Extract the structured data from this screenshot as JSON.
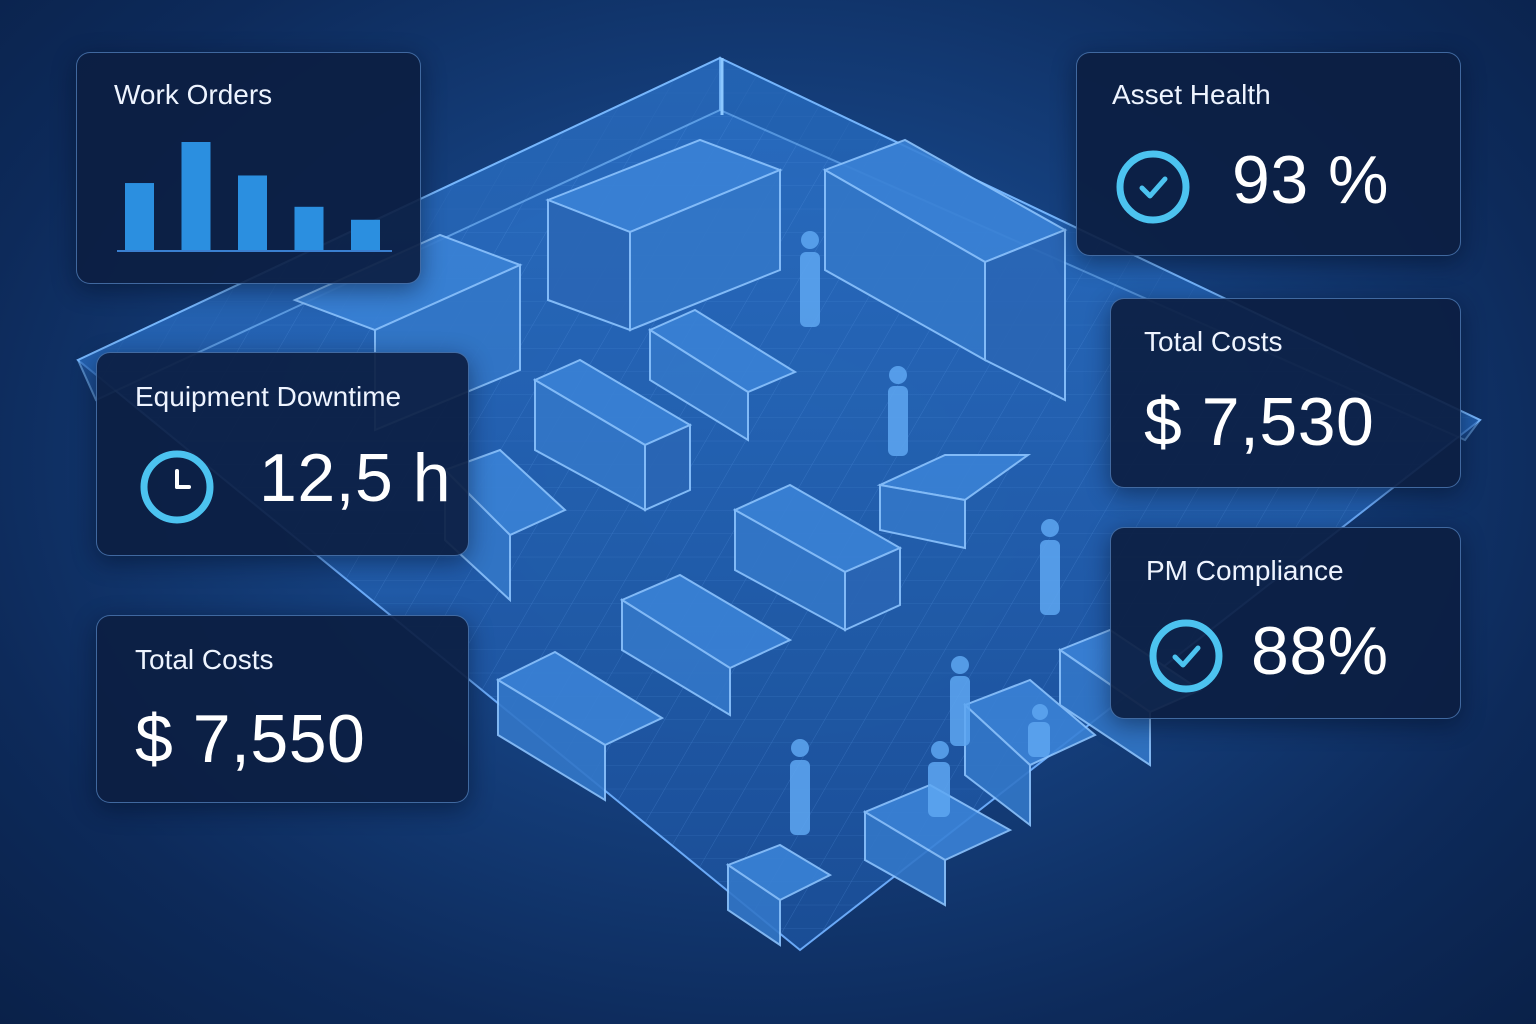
{
  "cards": {
    "work_orders": {
      "title": "Work Orders",
      "chart_data": {
        "type": "bar",
        "values": [
          0.62,
          1.0,
          0.69,
          0.4,
          0.28
        ]
      }
    },
    "downtime": {
      "title": "Equipment Downtime",
      "value": "12,5 h",
      "icon": "clock-icon"
    },
    "costs_left": {
      "title": "Total Costs",
      "value": "$ 7,550"
    },
    "asset_health": {
      "title": "Asset Health",
      "value": "93 %",
      "icon": "check-circle-icon"
    },
    "costs_right": {
      "title": "Total Costs",
      "value": "$ 7,530"
    },
    "pm_compliance": {
      "title": "PM Compliance",
      "value": "88%",
      "icon": "check-circle-icon"
    }
  },
  "colors": {
    "accent": "#2b8fe0",
    "ring": "#4cc3f0",
    "card_bg": "#0c1e42"
  }
}
